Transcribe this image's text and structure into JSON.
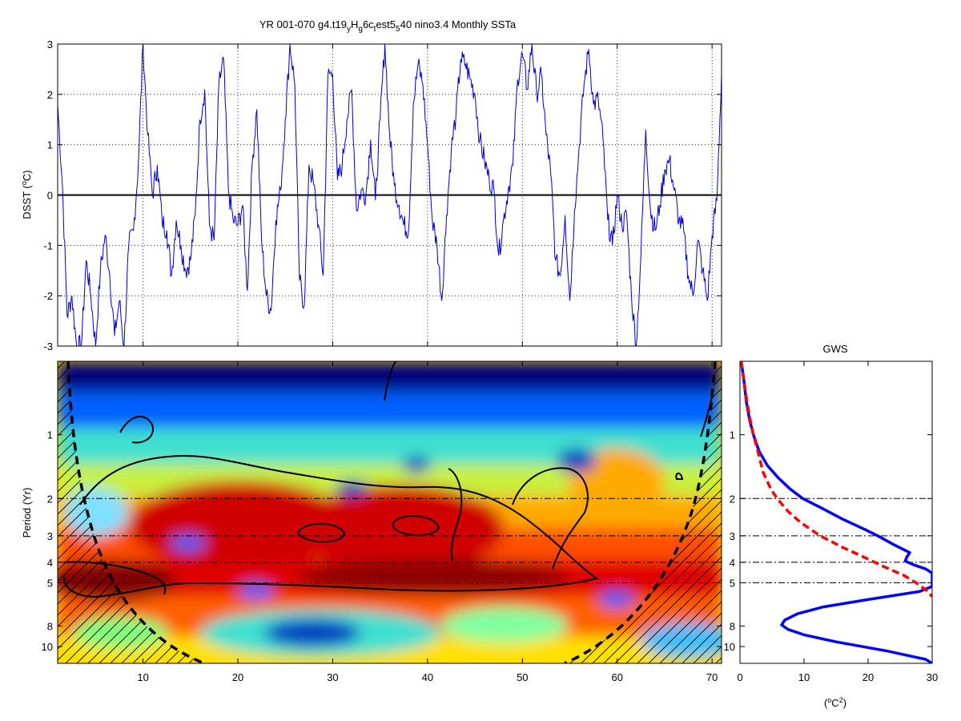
{
  "figure": {
    "title_prefix": "YR 001-070 g4.t19",
    "title_sub1": "y",
    "title_mid1": "H",
    "title_sub2": "g",
    "title_mid2": "6c",
    "title_sub3": "t",
    "title_mid3": "est5",
    "title_sub4": "5",
    "title_suffix": "40 nino3.4 Monthly SSTa"
  },
  "chart_data": [
    {
      "type": "line",
      "panel": "time-series",
      "ylabel": "DSST (oC)",
      "xlim": [
        1,
        71
      ],
      "ylim": [
        -3,
        3
      ],
      "xticks": [
        10,
        20,
        30,
        40,
        50,
        60,
        70
      ],
      "yticks": [
        -3,
        -2,
        -1,
        0,
        1,
        2,
        3
      ],
      "grid": true,
      "zero_line": true,
      "series": [
        {
          "color": "#0000cc",
          "x": [
            1.0,
            1.5,
            2.0,
            2.5,
            3.0,
            3.5,
            4.0,
            4.5,
            5.0,
            5.5,
            6.0,
            6.5,
            7.0,
            7.5,
            8.0,
            8.5,
            9.0,
            9.5,
            10.0,
            10.5,
            11.0,
            11.5,
            12.0,
            12.5,
            13.0,
            13.5,
            14.0,
            14.5,
            15.0,
            15.5,
            16.0,
            16.5,
            17.0,
            17.5,
            18.0,
            18.5,
            19.0,
            19.5,
            20.0,
            20.5,
            21.0,
            21.5,
            22.0,
            22.5,
            23.0,
            23.5,
            24.0,
            24.5,
            25.0,
            25.5,
            26.0,
            26.5,
            27.0,
            27.5,
            28.0,
            28.5,
            29.0,
            29.5,
            30.0,
            30.5,
            31.0,
            31.5,
            32.0,
            32.5,
            33.0,
            33.5,
            34.0,
            34.5,
            35.0,
            35.5,
            36.0,
            36.5,
            37.0,
            37.5,
            38.0,
            38.5,
            39.0,
            39.5,
            40.0,
            40.5,
            41.0,
            41.5,
            42.0,
            42.5,
            43.0,
            43.5,
            44.0,
            44.5,
            45.0,
            45.5,
            46.0,
            46.5,
            47.0,
            47.5,
            48.0,
            48.5,
            49.0,
            49.5,
            50.0,
            50.5,
            51.0,
            51.5,
            52.0,
            52.5,
            53.0,
            53.5,
            54.0,
            54.5,
            55.0,
            55.5,
            56.0,
            56.5,
            57.0,
            57.5,
            58.0,
            58.5,
            59.0,
            59.5,
            60.0,
            60.5,
            61.0,
            61.5,
            62.0,
            62.5,
            63.0,
            63.5,
            64.0,
            64.5,
            65.0,
            65.5,
            66.0,
            66.5,
            67.0,
            67.5,
            68.0,
            68.5,
            69.0,
            69.5,
            70.0,
            70.5,
            71.0
          ],
          "values": [
            1.8,
            0.2,
            -2.4,
            -2.0,
            -3.0,
            -3.0,
            -1.3,
            -2.0,
            -3.0,
            -1.5,
            -0.8,
            -1.6,
            -2.8,
            -2.1,
            -3.0,
            -1.0,
            -0.7,
            0.6,
            3.0,
            1.2,
            0.0,
            0.6,
            -0.5,
            -0.7,
            -1.6,
            -0.5,
            -1.0,
            -1.5,
            -1.3,
            -0.4,
            1.5,
            2.1,
            -0.6,
            -0.9,
            2.2,
            2.7,
            0.1,
            -0.5,
            -0.6,
            -0.2,
            -1.9,
            0.6,
            1.7,
            -0.9,
            -2.0,
            -2.3,
            -0.5,
            0.1,
            1.5,
            3.0,
            2.2,
            -1.7,
            -2.2,
            0.6,
            0.2,
            -0.6,
            -1.6,
            2.4,
            2.4,
            0.3,
            0.6,
            1.5,
            2.1,
            -0.3,
            0.1,
            0.0,
            1.1,
            -0.1,
            1.5,
            3.0,
            1.2,
            0.2,
            -0.2,
            -0.6,
            -0.7,
            1.8,
            2.6,
            2.2,
            1.0,
            -0.5,
            -1.0,
            -2.1,
            -0.4,
            0.9,
            1.6,
            2.7,
            2.6,
            2.3,
            2.0,
            1.1,
            0.7,
            0.3,
            0.1,
            -1.2,
            -0.5,
            0.1,
            0.6,
            2.3,
            2.8,
            2.1,
            3.0,
            2.0,
            2.4,
            1.2,
            0.4,
            -1.3,
            -1.6,
            -0.4,
            -2.1,
            -0.3,
            1.0,
            2.2,
            2.9,
            1.8,
            1.9,
            1.1,
            -0.5,
            -1.0,
            0.0,
            -0.6,
            -0.4,
            -2.0,
            -3.0,
            -1.2,
            1.3,
            -0.3,
            -0.7,
            -0.2,
            0.5,
            0.7,
            0.1,
            -0.5,
            -0.7,
            -1.6,
            -2.0,
            -0.9,
            -1.5,
            -2.1,
            -0.8,
            -0.1,
            2.4
          ]
        }
      ]
    },
    {
      "type": "heatmap",
      "panel": "wavelet-power-spectrum",
      "ylabel": "Period (Yr)",
      "xlim": [
        1,
        71
      ],
      "xticks": [
        10,
        20,
        30,
        40,
        50,
        60,
        70
      ],
      "ylim": [
        0.45,
        12
      ],
      "yscale": "log",
      "yticks": [
        1,
        2,
        3,
        4,
        5,
        8,
        10
      ],
      "colormap": "jet",
      "significance_contours": true,
      "cone_of_influence": "dashed, hatched outside",
      "reference_periods": [
        2,
        3,
        4,
        5
      ]
    },
    {
      "type": "line",
      "panel": "global-wavelet-spectrum",
      "title": "GWS",
      "xlabel": "(oC2)",
      "xlim": [
        0,
        30
      ],
      "xticks": [
        0,
        10,
        20,
        30
      ],
      "ylim": [
        0.45,
        12
      ],
      "yscale": "log",
      "yticks": [
        1,
        2,
        3,
        4,
        5,
        8,
        10
      ],
      "reference_periods": [
        2,
        3,
        4,
        5
      ],
      "series": [
        {
          "style": "solid",
          "color": "#0000ff",
          "period": [
            0.45,
            0.55,
            0.7,
            0.85,
            1.0,
            1.2,
            1.4,
            1.6,
            1.8,
            2.0,
            2.2,
            2.5,
            2.8,
            3.0,
            3.3,
            3.6,
            3.8,
            3.95,
            4.1,
            4.3,
            4.5,
            4.8,
            5.2,
            5.5,
            6.0,
            6.5,
            7.0,
            7.5,
            7.9,
            8.3,
            8.8,
            9.5,
            10.5,
            11.5,
            12.0
          ],
          "power": [
            0.2,
            0.6,
            1.0,
            1.5,
            2.1,
            3.0,
            4.3,
            6.0,
            7.8,
            9.8,
            12.5,
            16.0,
            19.5,
            21.5,
            24.0,
            26.5,
            26.0,
            25.8,
            27.0,
            29.0,
            30.0,
            30.0,
            30.0,
            28.0,
            20.0,
            13.0,
            9.0,
            7.0,
            6.5,
            7.5,
            10.0,
            15.0,
            23.0,
            29.0,
            30.0
          ]
        },
        {
          "style": "dashed",
          "color": "#ff0000",
          "period": [
            0.45,
            0.55,
            0.7,
            0.85,
            1.0,
            1.2,
            1.5,
            1.8,
            2.0,
            2.3,
            2.6,
            3.0,
            3.4,
            3.8,
            4.2,
            4.6,
            5.0,
            5.4,
            5.8
          ],
          "power": [
            0.2,
            0.6,
            1.1,
            1.6,
            2.1,
            2.8,
            3.6,
            4.8,
            5.8,
            7.5,
            9.5,
            12.5,
            16.0,
            19.5,
            22.5,
            25.5,
            27.5,
            29.0,
            30.0
          ]
        }
      ]
    }
  ]
}
